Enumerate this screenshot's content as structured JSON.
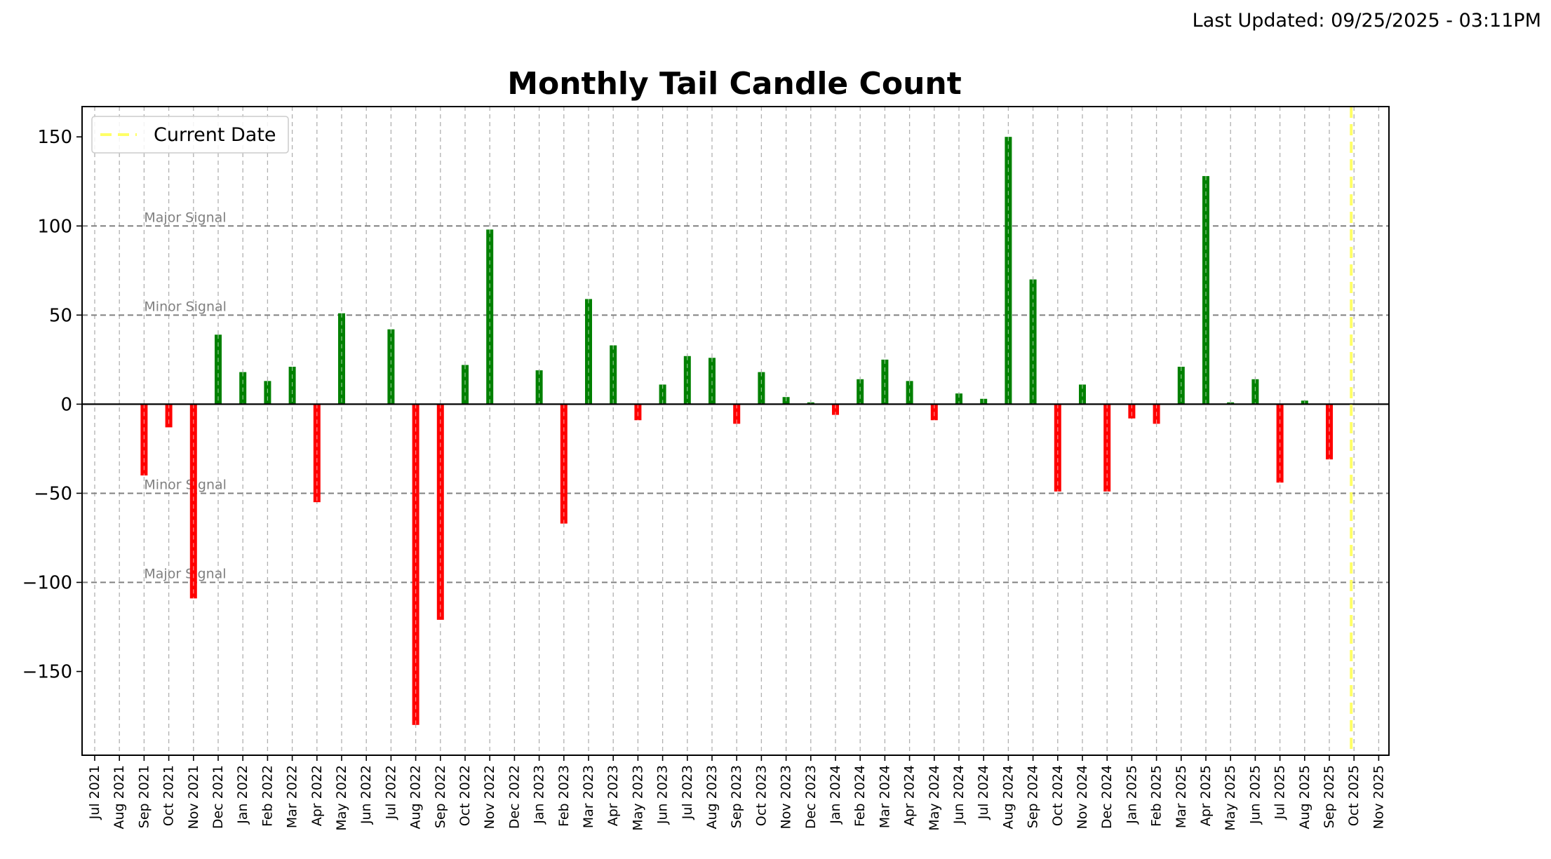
{
  "last_updated": "Last Updated: 09/25/2025 - 03:11PM",
  "chart_data": {
    "type": "bar",
    "title": "Monthly Tail Candle Count",
    "xlabel": "",
    "ylabel": "",
    "ylim": [
      -197,
      167
    ],
    "yticks": [
      -150,
      -100,
      -50,
      0,
      50,
      100,
      150
    ],
    "ytick_labels": [
      "−150",
      "−100",
      "−50",
      "0",
      "50",
      "100",
      "150"
    ],
    "grid": true,
    "legend_position": "upper-left",
    "legend": [
      {
        "label": "Current Date",
        "color": "#ffff66",
        "style": "dashed"
      }
    ],
    "current_date": "Oct 2025",
    "colors": {
      "positive": "#008000",
      "negative": "#ff0000",
      "signal_line": "#808080",
      "current_date": "#ffff66"
    },
    "signal_lines": [
      {
        "value": 100,
        "label": "Major Signal"
      },
      {
        "value": 50,
        "label": "Minor Signal"
      },
      {
        "value": -50,
        "label": "Minor Signal"
      },
      {
        "value": -100,
        "label": "Major Signal"
      }
    ],
    "categories": [
      "Jul 2021",
      "Aug 2021",
      "Sep 2021",
      "Oct 2021",
      "Nov 2021",
      "Dec 2021",
      "Jan 2022",
      "Feb 2022",
      "Mar 2022",
      "Apr 2022",
      "May 2022",
      "Jun 2022",
      "Jul 2022",
      "Aug 2022",
      "Sep 2022",
      "Oct 2022",
      "Nov 2022",
      "Dec 2022",
      "Jan 2023",
      "Feb 2023",
      "Mar 2023",
      "Apr 2023",
      "May 2023",
      "Jun 2023",
      "Jul 2023",
      "Aug 2023",
      "Sep 2023",
      "Oct 2023",
      "Nov 2023",
      "Dec 2023",
      "Jan 2024",
      "Feb 2024",
      "Mar 2024",
      "Apr 2024",
      "May 2024",
      "Jun 2024",
      "Jul 2024",
      "Aug 2024",
      "Sep 2024",
      "Oct 2024",
      "Nov 2024",
      "Dec 2024",
      "Jan 2025",
      "Feb 2025",
      "Mar 2025",
      "Apr 2025",
      "May 2025",
      "Jun 2025",
      "Jul 2025",
      "Aug 2025",
      "Sep 2025",
      "Oct 2025",
      "Nov 2025"
    ],
    "values": [
      0,
      0,
      -40,
      -13,
      -109,
      39,
      18,
      13,
      21,
      -55,
      51,
      0,
      42,
      -180,
      -121,
      22,
      98,
      0,
      19,
      -67,
      59,
      33,
      -9,
      11,
      27,
      26,
      -11,
      18,
      4,
      1,
      -6,
      14,
      25,
      13,
      -9,
      6,
      3,
      150,
      70,
      -49,
      11,
      -49,
      -8,
      -11,
      21,
      128,
      1,
      14,
      -44,
      2,
      -31,
      0,
      0
    ]
  }
}
